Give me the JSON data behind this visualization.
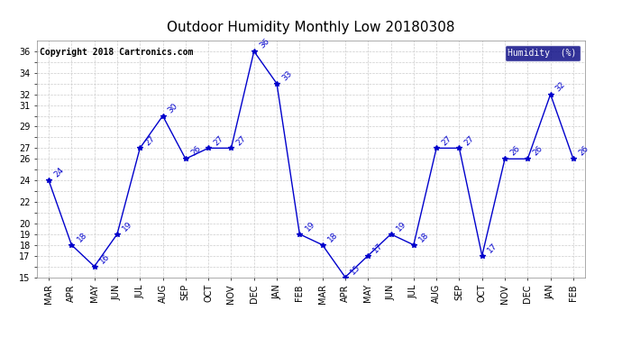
{
  "title": "Outdoor Humidity Monthly Low 20180308",
  "copyright": "Copyright 2018 Cartronics.com",
  "legend_label": "Humidity  (%)",
  "x_labels": [
    "MAR",
    "APR",
    "MAY",
    "JUN",
    "JUL",
    "AUG",
    "SEP",
    "OCT",
    "NOV",
    "DEC",
    "JAN",
    "FEB",
    "MAR",
    "APR",
    "MAY",
    "JUN",
    "JUL",
    "AUG",
    "SEP",
    "OCT",
    "NOV",
    "DEC",
    "JAN",
    "FEB"
  ],
  "y_values": [
    24,
    18,
    16,
    19,
    27,
    30,
    26,
    27,
    27,
    36,
    33,
    19,
    18,
    15,
    17,
    19,
    18,
    27,
    27,
    17,
    26,
    26,
    32,
    26
  ],
  "ylim": [
    15,
    37
  ],
  "visible_yticks": [
    15,
    17,
    18,
    19,
    20,
    22,
    24,
    26,
    27,
    29,
    31,
    32,
    34,
    36
  ],
  "line_color": "#0000cc",
  "marker_color": "#0000cc",
  "label_color": "#0000cc",
  "bg_color": "#ffffff",
  "grid_color": "#cccccc",
  "title_fontsize": 11,
  "copyright_fontsize": 7,
  "label_fontsize": 6.5,
  "tick_fontsize": 7,
  "legend_bg": "#000080",
  "legend_text_color": "#ffffff"
}
